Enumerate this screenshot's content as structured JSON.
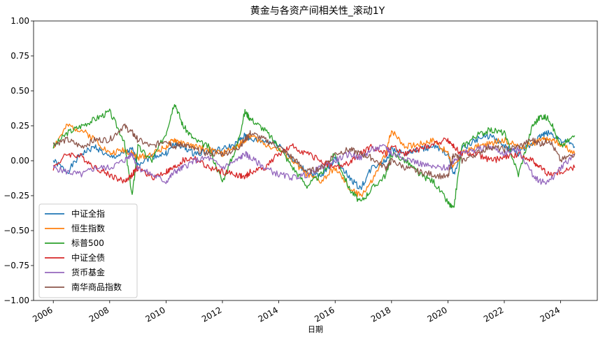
{
  "chart_data": {
    "type": "line",
    "title": "黄金与各资产间相关性_滚动1Y",
    "xlabel": "日期",
    "ylabel": "",
    "xlim": [
      2005.3,
      2025.3
    ],
    "ylim": [
      -1.0,
      1.0
    ],
    "x_ticks": [
      "2006",
      "2008",
      "2010",
      "2012",
      "2014",
      "2016",
      "2018",
      "2020",
      "2022",
      "2024"
    ],
    "y_ticks": [
      "−1.00",
      "−0.75",
      "−0.50",
      "−0.25",
      "0.00",
      "0.25",
      "0.50",
      "0.75",
      "1.00"
    ],
    "legend_position": "lower-left",
    "grid": false,
    "x": [
      2006.0,
      2006.5,
      2007.0,
      2007.5,
      2008.0,
      2008.5,
      2008.8,
      2009.0,
      2009.5,
      2010.0,
      2010.3,
      2010.6,
      2011.0,
      2011.5,
      2012.0,
      2012.5,
      2012.8,
      2013.0,
      2013.5,
      2014.0,
      2014.5,
      2015.0,
      2015.5,
      2016.0,
      2016.5,
      2016.9,
      2017.3,
      2017.8,
      2018.0,
      2018.5,
      2019.0,
      2019.5,
      2020.0,
      2020.2,
      2020.5,
      2021.0,
      2021.5,
      2022.0,
      2022.5,
      2023.0,
      2023.3,
      2023.6,
      2024.0,
      2024.5
    ],
    "series": [
      {
        "name": "中证全指",
        "color": "#1f77b4",
        "values": [
          0.0,
          -0.08,
          0.05,
          0.1,
          0.02,
          0.05,
          0.08,
          -0.02,
          0.03,
          0.05,
          0.12,
          0.1,
          0.05,
          0.07,
          0.08,
          0.12,
          0.18,
          0.15,
          0.14,
          0.12,
          0.0,
          -0.08,
          -0.12,
          0.02,
          -0.12,
          -0.2,
          -0.05,
          0.0,
          0.08,
          0.05,
          0.08,
          0.1,
          0.05,
          -0.1,
          0.08,
          0.15,
          0.18,
          0.1,
          0.05,
          0.12,
          0.18,
          0.2,
          0.15,
          0.1
        ]
      },
      {
        "name": "恒生指数",
        "color": "#ff7f0e",
        "values": [
          0.1,
          0.25,
          0.22,
          0.15,
          0.05,
          0.08,
          0.05,
          0.02,
          0.05,
          0.1,
          0.15,
          0.12,
          0.1,
          0.08,
          0.05,
          0.1,
          0.15,
          0.18,
          0.12,
          0.08,
          0.0,
          -0.1,
          -0.15,
          -0.05,
          -0.2,
          -0.25,
          -0.15,
          0.05,
          0.22,
          0.1,
          0.12,
          0.15,
          0.05,
          -0.05,
          0.05,
          0.1,
          0.12,
          0.15,
          0.1,
          0.12,
          0.15,
          0.15,
          0.12,
          0.05
        ]
      },
      {
        "name": "标普500",
        "color": "#2ca02c",
        "values": [
          0.1,
          0.2,
          0.25,
          0.3,
          0.35,
          0.15,
          -0.25,
          0.1,
          0.0,
          0.2,
          0.42,
          0.25,
          0.15,
          0.1,
          -0.15,
          0.1,
          0.35,
          0.3,
          0.22,
          0.1,
          -0.05,
          -0.18,
          -0.1,
          0.05,
          -0.2,
          -0.3,
          -0.2,
          -0.1,
          0.05,
          0.0,
          -0.1,
          -0.15,
          -0.3,
          -0.35,
          0.1,
          0.18,
          0.22,
          0.2,
          -0.1,
          0.25,
          0.32,
          0.3,
          0.1,
          0.18
        ]
      },
      {
        "name": "中证全债",
        "color": "#d62728",
        "values": [
          -0.05,
          0.05,
          0.03,
          -0.05,
          -0.1,
          -0.15,
          -0.1,
          -0.05,
          -0.12,
          -0.08,
          -0.05,
          0.0,
          0.02,
          -0.05,
          -0.08,
          -0.1,
          -0.12,
          -0.08,
          -0.05,
          0.05,
          0.1,
          0.05,
          0.0,
          -0.05,
          -0.02,
          0.05,
          0.1,
          0.05,
          0.1,
          0.05,
          0.08,
          0.12,
          0.15,
          0.1,
          0.05,
          0.05,
          0.0,
          0.02,
          0.05,
          0.0,
          -0.05,
          -0.1,
          -0.08,
          -0.05
        ]
      },
      {
        "name": "货币基金",
        "color": "#9467bd",
        "values": [
          -0.05,
          -0.08,
          -0.1,
          -0.05,
          -0.05,
          0.0,
          0.05,
          -0.05,
          -0.1,
          -0.15,
          -0.08,
          -0.05,
          0.0,
          0.02,
          -0.05,
          0.0,
          0.05,
          0.02,
          -0.05,
          -0.1,
          -0.12,
          -0.1,
          -0.05,
          0.0,
          0.05,
          0.02,
          0.08,
          0.1,
          0.05,
          0.02,
          -0.02,
          -0.05,
          -0.05,
          0.0,
          0.05,
          0.08,
          0.1,
          0.05,
          0.08,
          -0.1,
          -0.15,
          -0.15,
          -0.05,
          0.05
        ]
      },
      {
        "name": "南华商品指数",
        "color": "#8c564b",
        "values": [
          0.12,
          0.15,
          0.1,
          0.15,
          0.15,
          0.25,
          0.2,
          0.15,
          0.1,
          0.15,
          0.1,
          0.12,
          0.08,
          0.05,
          0.05,
          0.08,
          0.15,
          0.2,
          0.15,
          0.1,
          0.02,
          -0.08,
          -0.05,
          0.05,
          0.08,
          0.05,
          0.02,
          -0.05,
          0.0,
          -0.05,
          -0.08,
          -0.1,
          -0.12,
          0.05,
          0.0,
          0.05,
          0.1,
          0.08,
          0.1,
          0.15,
          0.12,
          0.15,
          0.0,
          0.05
        ]
      }
    ]
  }
}
